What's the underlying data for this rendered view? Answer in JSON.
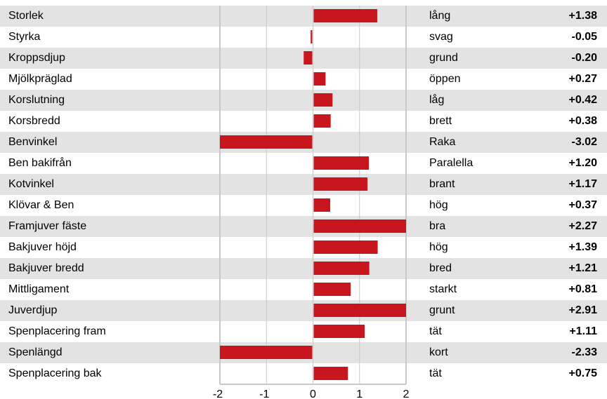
{
  "chart_data": {
    "type": "bar",
    "orientation": "horizontal",
    "xlim": [
      -2,
      2
    ],
    "x_ticks": [
      "-2",
      "-1",
      "0",
      "1",
      "2"
    ],
    "grid": true,
    "bar_color": "#c8161e",
    "row_shade_color": "#e3e3e3",
    "categories": [
      "Storlek",
      "Styrka",
      "Kroppsdjup",
      "Mjölkpräglad",
      "Korslutning",
      "Korsbredd",
      "Benvinkel",
      "Ben bakifrån",
      "Kotvinkel",
      "Klövar & Ben",
      "Framjuver fäste",
      "Bakjuver höjd",
      "Bakjuver bredd",
      "Mittligament",
      "Juverdjup",
      "Spenplacering fram",
      "Spenlängd",
      "Spenplacering bak"
    ],
    "descriptors": [
      "lång",
      "svag",
      "grund",
      "öppen",
      "låg",
      "brett",
      "Raka",
      "Paralella",
      "brant",
      "hög",
      "bra",
      "hög",
      "bred",
      "starkt",
      "grunt",
      "tät",
      "kort",
      "tät"
    ],
    "value_labels": [
      "+1.38",
      "-0.05",
      "-0.20",
      "+0.27",
      "+0.42",
      "+0.38",
      "-3.02",
      "+1.20",
      "+1.17",
      "+0.37",
      "+2.27",
      "+1.39",
      "+1.21",
      "+0.81",
      "+2.91",
      "+1.11",
      "-2.33",
      "+0.75"
    ],
    "values": [
      1.38,
      -0.05,
      -0.2,
      0.27,
      0.42,
      0.38,
      -3.02,
      1.2,
      1.17,
      0.37,
      2.27,
      1.39,
      1.21,
      0.81,
      2.91,
      1.11,
      -2.33,
      0.75
    ]
  }
}
